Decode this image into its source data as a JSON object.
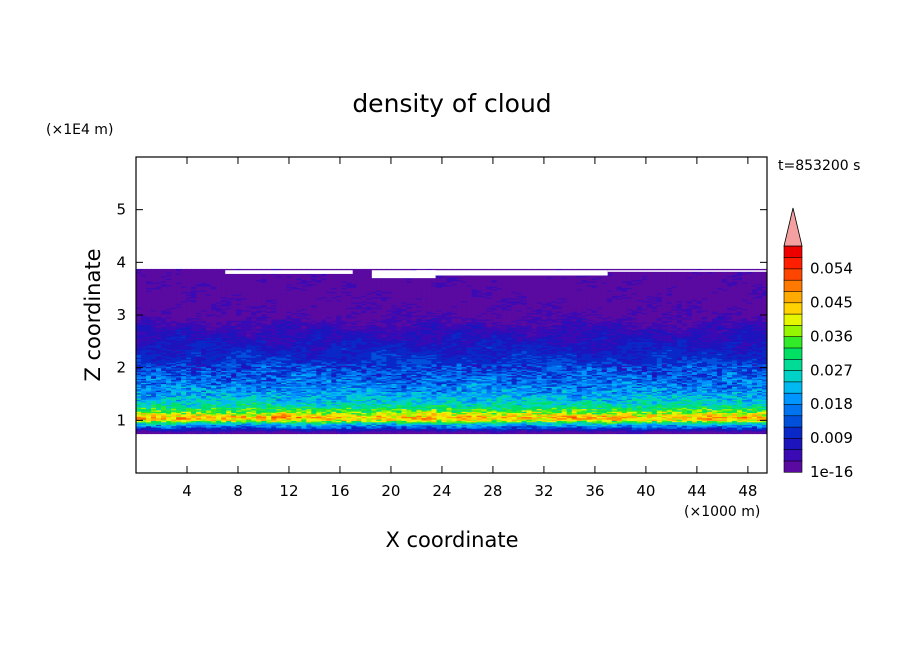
{
  "chart_data": {
    "type": "heatmap",
    "title": "density of cloud",
    "xlabel": "X coordinate",
    "ylabel": "Z coordinate",
    "x_scale_label": "(×1000 m)",
    "y_scale_label": "(×1E4 m)",
    "time_label": "t=853200 s",
    "xlim": [
      0,
      49.5
    ],
    "ylim": [
      0,
      6.0
    ],
    "x_ticks": [
      4,
      8,
      12,
      16,
      20,
      24,
      28,
      32,
      36,
      40,
      44,
      48
    ],
    "y_ticks": [
      1,
      2,
      3,
      4,
      5
    ],
    "colorbar": {
      "labels": [
        "1e-16",
        "0.009",
        "0.018",
        "0.027",
        "0.036",
        "0.045",
        "0.054"
      ],
      "label_levels": [
        0,
        0.009,
        0.018,
        0.027,
        0.036,
        0.045,
        0.054
      ],
      "max_level": 0.06,
      "extend": "max",
      "colors": [
        "#5a0aa0",
        "#3c0ab4",
        "#1e14be",
        "#0a28c8",
        "#0050dc",
        "#0073f0",
        "#0096ff",
        "#00b9f0",
        "#00d2c8",
        "#00dc96",
        "#00e164",
        "#32eb28",
        "#96f500",
        "#e6f500",
        "#ffd200",
        "#ffaa00",
        "#ff7800",
        "#ff4600",
        "#ff1e00",
        "#ee0000",
        "#f4a0a0"
      ]
    },
    "cloud_profile": [
      {
        "z": 3.85,
        "level": 0.001
      },
      {
        "z": 3.4,
        "level": 0.001
      },
      {
        "z": 3.0,
        "level": 0.002
      },
      {
        "z": 2.7,
        "level": 0.0055
      },
      {
        "z": 2.4,
        "level": 0.0085
      },
      {
        "z": 2.15,
        "level": 0.011
      },
      {
        "z": 1.9,
        "level": 0.014
      },
      {
        "z": 1.7,
        "level": 0.0165
      },
      {
        "z": 1.55,
        "level": 0.0195
      },
      {
        "z": 1.4,
        "level": 0.0235
      },
      {
        "z": 1.28,
        "level": 0.028
      },
      {
        "z": 1.18,
        "level": 0.035
      },
      {
        "z": 1.1,
        "level": 0.042
      },
      {
        "z": 1.05,
        "level": 0.046
      },
      {
        "z": 1.0,
        "level": 0.04
      },
      {
        "z": 0.95,
        "level": 0.026
      },
      {
        "z": 0.88,
        "level": 0.015
      },
      {
        "z": 0.82,
        "level": 0.007
      },
      {
        "z": 0.78,
        "level": 0.001
      }
    ],
    "cloud_top_z": 3.85,
    "cloud_base_z": 0.75,
    "grid": false
  }
}
